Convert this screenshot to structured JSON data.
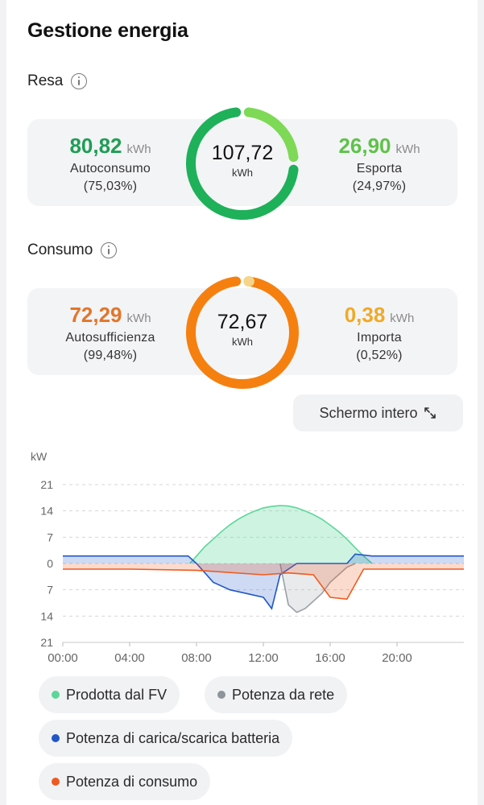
{
  "title": "Gestione energia",
  "resa": {
    "label": "Resa",
    "left": {
      "value": "80,82",
      "unit": "kWh",
      "label": "Autoconsumo",
      "pct": "(75,03%)"
    },
    "center": {
      "value": "107,72",
      "unit": "kWh"
    },
    "right": {
      "value": "26,90",
      "unit": "kWh",
      "label": "Esporta",
      "pct": "(24,97%)"
    },
    "share": 0.7503,
    "colors": {
      "main": "#1fb05a",
      "secondary": "#7ed957",
      "left_text": "#1f9e55",
      "right_text": "#5fc24a"
    }
  },
  "consumo": {
    "label": "Consumo",
    "left": {
      "value": "72,29",
      "unit": "kWh",
      "label": "Autosufficienza",
      "pct": "(99,48%)"
    },
    "center": {
      "value": "72,67",
      "unit": "kWh"
    },
    "right": {
      "value": "0,38",
      "unit": "kWh",
      "label": "Importa",
      "pct": "(0,52%)"
    },
    "share": 0.9948,
    "colors": {
      "main": "#f5800f",
      "secondary": "#f4d58a",
      "left_text": "#e2762a",
      "right_text": "#efaa26"
    }
  },
  "fullscreen": {
    "label": "Schermo intero",
    "icon": "expand-icon"
  },
  "chart_data": {
    "type": "area",
    "yunit": "kW",
    "y_tick_labels": [
      "21",
      "14",
      "7",
      "0",
      "7",
      "14",
      "21"
    ],
    "ylim": [
      -21,
      21
    ],
    "x_tick_labels": [
      "00:00",
      "04:00",
      "08:00",
      "12:00",
      "16:00",
      "20:00"
    ],
    "xlim_hours": [
      0,
      24
    ],
    "grid": true,
    "series": [
      {
        "name": "Prodotta dal FV",
        "color": "#5cd69a",
        "x": [
          7.6,
          8.0,
          8.5,
          9.0,
          9.5,
          10.0,
          10.5,
          11.0,
          11.5,
          12.0,
          12.5,
          13.0,
          13.5,
          14.0,
          14.5,
          15.0,
          15.5,
          16.0,
          16.5,
          17.0,
          17.5,
          18.0,
          18.5
        ],
        "values": [
          0,
          2,
          4.5,
          6.5,
          8.5,
          10.3,
          11.8,
          13.0,
          14.0,
          14.8,
          15.2,
          15.4,
          15.3,
          14.8,
          14.0,
          13.0,
          11.8,
          10.2,
          8.5,
          6.5,
          4.2,
          2.0,
          0
        ]
      },
      {
        "name": "Potenza da rete",
        "color": "#9aa0a6",
        "x": [
          13.0,
          13.5,
          14.0,
          14.5,
          15.0,
          15.5,
          16.0,
          16.5,
          17.0,
          17.5
        ],
        "values": [
          0,
          -11,
          -13,
          -12,
          -10,
          -8,
          -5,
          -3,
          -1,
          0
        ]
      },
      {
        "name": "Potenza di carica/scarica batteria",
        "color": "#2157c7",
        "x": [
          0,
          4,
          7.5,
          8.0,
          9.0,
          10.0,
          11.0,
          12.0,
          12.5,
          13.0,
          14.0,
          15.0,
          16.0,
          17.0,
          17.5,
          18.5,
          20,
          24
        ],
        "values": [
          2.0,
          2.0,
          2.0,
          0,
          -5,
          -7,
          -8,
          -9,
          -12,
          -3,
          0,
          0,
          0,
          0,
          2.5,
          2.0,
          2.0,
          2.0
        ]
      },
      {
        "name": "Potenza di consumo",
        "color": "#ef5b1e",
        "x": [
          0,
          4,
          8,
          12,
          13.5,
          15,
          16.0,
          17.0,
          18,
          20,
          24
        ],
        "values": [
          -1.5,
          -1.5,
          -1.8,
          -3.0,
          -2.5,
          -3.0,
          -9.0,
          -9.5,
          -1.5,
          -1.5,
          -1.5
        ]
      }
    ],
    "legend": [
      {
        "label": "Prodotta dal FV",
        "color": "#5cd69a"
      },
      {
        "label": "Potenza da rete",
        "color": "#8e949b"
      },
      {
        "label": "Potenza di carica/scarica batteria",
        "color": "#2157c7"
      },
      {
        "label": "Potenza di consumo",
        "color": "#ef5b1e"
      }
    ]
  }
}
